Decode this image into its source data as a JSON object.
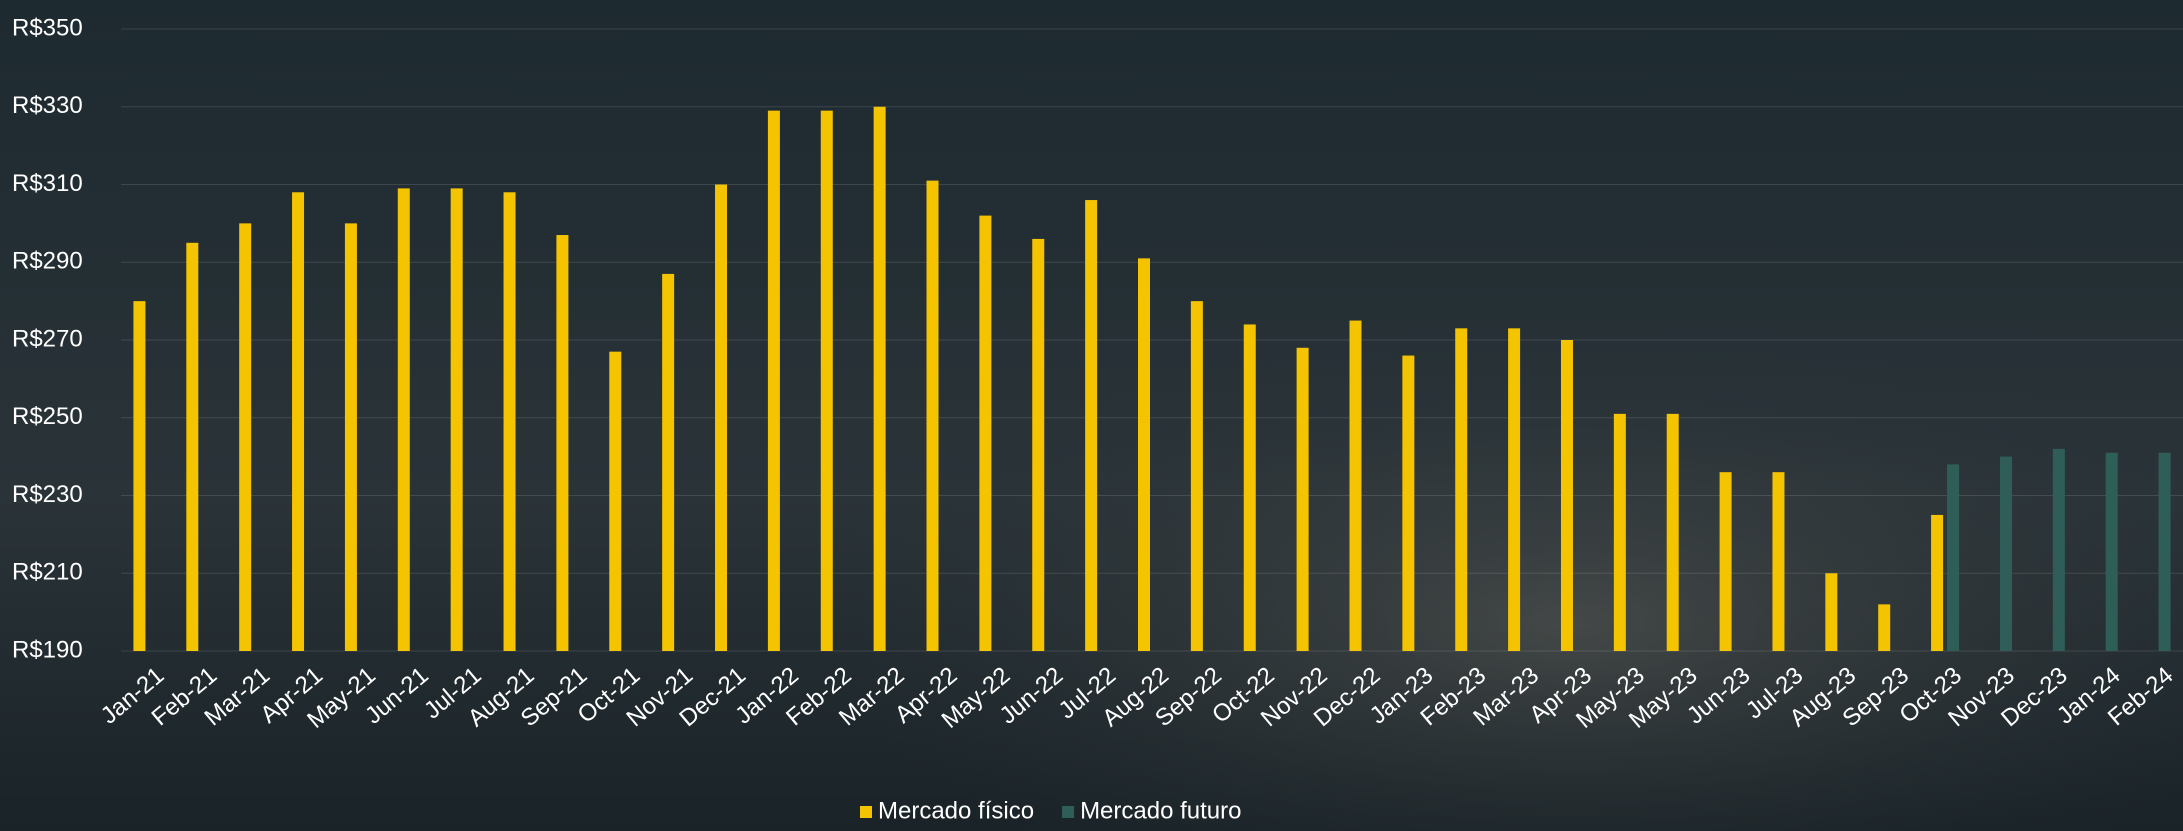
{
  "chart_data": {
    "type": "bar",
    "categories": [
      "Jan-21",
      "Feb-21",
      "Mar-21",
      "Apr-21",
      "May-21",
      "Jun-21",
      "Jul-21",
      "Aug-21",
      "Sep-21",
      "Oct-21",
      "Nov-21",
      "Dec-21",
      "Jan-22",
      "Feb-22",
      "Mar-22",
      "Apr-22",
      "May-22",
      "Jun-22",
      "Jul-22",
      "Aug-22",
      "Sep-22",
      "Oct-22",
      "Nov-22",
      "Dec-22",
      "Jan-23",
      "Feb-23",
      "Mar-23",
      "Apr-23",
      "May-23",
      "May-23",
      "Jun-23",
      "Jul-23",
      "Aug-23",
      "Sep-23",
      "Oct-23",
      "Nov-23",
      "Dec-23",
      "Jan-24",
      "Feb-24"
    ],
    "series": [
      {
        "name": "Mercado físico",
        "color": "#f5c400",
        "values": [
          280,
          295,
          300,
          308,
          300,
          309,
          309,
          308,
          297,
          267,
          287,
          310,
          329,
          329,
          330,
          311,
          302,
          296,
          306,
          291,
          280,
          274,
          268,
          275,
          266,
          273,
          273,
          270,
          251,
          251,
          236,
          236,
          210,
          202,
          225,
          null,
          null,
          null,
          null
        ]
      },
      {
        "name": "Mercado futuro",
        "color": "#2f5e58",
        "values": [
          null,
          null,
          null,
          null,
          null,
          null,
          null,
          null,
          null,
          null,
          null,
          null,
          null,
          null,
          null,
          null,
          null,
          null,
          null,
          null,
          null,
          null,
          null,
          null,
          null,
          null,
          null,
          null,
          null,
          null,
          null,
          null,
          null,
          null,
          238,
          240,
          242,
          241,
          241
        ]
      }
    ],
    "ylim": [
      190,
      350
    ],
    "yticks": [
      {
        "value": 190,
        "label": "R$190"
      },
      {
        "value": 210,
        "label": "R$210"
      },
      {
        "value": 230,
        "label": "R$230"
      },
      {
        "value": 250,
        "label": "R$250"
      },
      {
        "value": 270,
        "label": "R$270"
      },
      {
        "value": 290,
        "label": "R$290"
      },
      {
        "value": 310,
        "label": "R$310"
      },
      {
        "value": 330,
        "label": "R$330"
      },
      {
        "value": 350,
        "label": "R$350"
      }
    ],
    "grid": true,
    "legend": "bottom"
  }
}
